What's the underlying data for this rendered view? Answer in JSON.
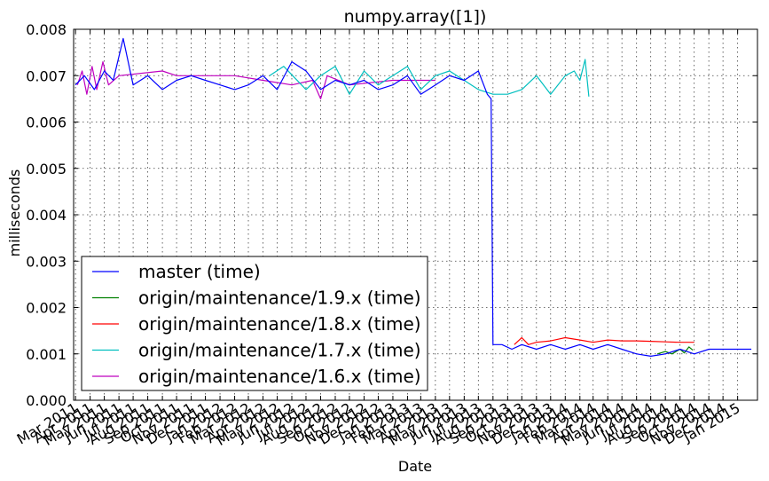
{
  "chart_data": {
    "type": "line",
    "title": "numpy.array([1])",
    "xlabel": "Date",
    "ylabel": "milliseconds",
    "ylim": [
      0,
      0.008
    ],
    "xlim": [
      "2011-02-25",
      "2015-02-12"
    ],
    "grid": true,
    "legend_position": "lower-left",
    "y_ticks": [
      "0.000",
      "0.001",
      "0.002",
      "0.003",
      "0.004",
      "0.005",
      "0.006",
      "0.007",
      "0.008"
    ],
    "x_ticks": [
      {
        "date": "2011-03-01",
        "label": "Mar 2011"
      },
      {
        "date": "2011-04-01",
        "label": "Apr 2011"
      },
      {
        "date": "2011-05-01",
        "label": "May 2011"
      },
      {
        "date": "2011-06-01",
        "label": "Jun 2011"
      },
      {
        "date": "2011-07-01",
        "label": "Jul 2011"
      },
      {
        "date": "2011-08-01",
        "label": "Aug 2011"
      },
      {
        "date": "2011-09-01",
        "label": "Sep 2011"
      },
      {
        "date": "2011-10-01",
        "label": "Oct 2011"
      },
      {
        "date": "2011-11-01",
        "label": "Nov 2011"
      },
      {
        "date": "2011-12-01",
        "label": "Dec 2011"
      },
      {
        "date": "2012-01-01",
        "label": "Jan 2012"
      },
      {
        "date": "2012-02-01",
        "label": "Feb 2012"
      },
      {
        "date": "2012-03-01",
        "label": "Mar 2012"
      },
      {
        "date": "2012-04-01",
        "label": "Apr 2012"
      },
      {
        "date": "2012-05-01",
        "label": "May 2012"
      },
      {
        "date": "2012-06-01",
        "label": "Jun 2012"
      },
      {
        "date": "2012-07-01",
        "label": "Jul 2012"
      },
      {
        "date": "2012-08-01",
        "label": "Aug 2012"
      },
      {
        "date": "2012-09-01",
        "label": "Sep 2012"
      },
      {
        "date": "2012-10-01",
        "label": "Oct 2012"
      },
      {
        "date": "2012-11-01",
        "label": "Nov 2012"
      },
      {
        "date": "2012-12-01",
        "label": "Dec 2012"
      },
      {
        "date": "2013-01-01",
        "label": "Jan 2013"
      },
      {
        "date": "2013-02-01",
        "label": "Feb 2013"
      },
      {
        "date": "2013-03-01",
        "label": "Mar 2013"
      },
      {
        "date": "2013-04-01",
        "label": "Apr 2013"
      },
      {
        "date": "2013-05-01",
        "label": "May 2013"
      },
      {
        "date": "2013-06-01",
        "label": "Jun 2013"
      },
      {
        "date": "2013-07-01",
        "label": "Jul 2013"
      },
      {
        "date": "2013-08-01",
        "label": "Aug 2013"
      },
      {
        "date": "2013-09-01",
        "label": "Sep 2013"
      },
      {
        "date": "2013-10-01",
        "label": "Oct 2013"
      },
      {
        "date": "2013-11-01",
        "label": "Nov 2013"
      },
      {
        "date": "2013-12-01",
        "label": "Dec 2013"
      },
      {
        "date": "2014-01-01",
        "label": "Jan 2014"
      },
      {
        "date": "2014-02-01",
        "label": "Feb 2014"
      },
      {
        "date": "2014-03-01",
        "label": "Mar 2014"
      },
      {
        "date": "2014-04-01",
        "label": "Apr 2014"
      },
      {
        "date": "2014-05-01",
        "label": "May 2014"
      },
      {
        "date": "2014-06-01",
        "label": "Jun 2014"
      },
      {
        "date": "2014-07-01",
        "label": "Jul 2014"
      },
      {
        "date": "2014-08-01",
        "label": "Aug 2014"
      },
      {
        "date": "2014-09-01",
        "label": "Sep 2014"
      },
      {
        "date": "2014-10-01",
        "label": "Oct 2014"
      },
      {
        "date": "2014-11-01",
        "label": "Nov 2014"
      },
      {
        "date": "2014-12-01",
        "label": "Dec 2014"
      },
      {
        "date": "2015-01-01",
        "label": "Jan 2015"
      }
    ],
    "series": [
      {
        "name": "master (time)",
        "color": "#0000ff",
        "points": [
          [
            "2011-03-01",
            0.0068
          ],
          [
            "2011-03-20",
            0.007
          ],
          [
            "2011-04-10",
            0.0067
          ],
          [
            "2011-05-01",
            0.0071
          ],
          [
            "2011-05-20",
            0.0069
          ],
          [
            "2011-06-10",
            0.0078
          ],
          [
            "2011-07-01",
            0.0068
          ],
          [
            "2011-08-01",
            0.007
          ],
          [
            "2011-09-01",
            0.0067
          ],
          [
            "2011-10-01",
            0.0069
          ],
          [
            "2011-11-01",
            0.007
          ],
          [
            "2011-12-01",
            0.0069
          ],
          [
            "2012-01-01",
            0.0068
          ],
          [
            "2012-02-01",
            0.0067
          ],
          [
            "2012-03-01",
            0.0068
          ],
          [
            "2012-04-01",
            0.007
          ],
          [
            "2012-05-01",
            0.0067
          ],
          [
            "2012-06-01",
            0.0073
          ],
          [
            "2012-07-01",
            0.0071
          ],
          [
            "2012-08-01",
            0.0067
          ],
          [
            "2012-09-01",
            0.0069
          ],
          [
            "2012-10-01",
            0.0068
          ],
          [
            "2012-11-01",
            0.0069
          ],
          [
            "2012-12-01",
            0.0067
          ],
          [
            "2013-01-01",
            0.0068
          ],
          [
            "2013-02-01",
            0.007
          ],
          [
            "2013-03-01",
            0.0066
          ],
          [
            "2013-04-01",
            0.0068
          ],
          [
            "2013-05-01",
            0.007
          ],
          [
            "2013-06-01",
            0.0069
          ],
          [
            "2013-07-01",
            0.0071
          ],
          [
            "2013-07-20",
            0.0066
          ],
          [
            "2013-07-28",
            0.0065
          ],
          [
            "2013-08-01",
            0.0012
          ],
          [
            "2013-08-20",
            0.0012
          ],
          [
            "2013-09-10",
            0.0011
          ],
          [
            "2013-10-01",
            0.0012
          ],
          [
            "2013-11-01",
            0.0011
          ],
          [
            "2013-12-01",
            0.0012
          ],
          [
            "2014-01-01",
            0.0011
          ],
          [
            "2014-02-01",
            0.0012
          ],
          [
            "2014-03-01",
            0.0011
          ],
          [
            "2014-04-01",
            0.0012
          ],
          [
            "2014-05-01",
            0.0011
          ],
          [
            "2014-06-01",
            0.001
          ],
          [
            "2014-07-01",
            0.00095
          ],
          [
            "2014-08-01",
            0.001
          ],
          [
            "2014-09-01",
            0.0011
          ],
          [
            "2014-10-01",
            0.001
          ],
          [
            "2014-11-01",
            0.0011
          ],
          [
            "2014-12-01",
            0.0011
          ],
          [
            "2015-01-01",
            0.0011
          ],
          [
            "2015-01-30",
            0.0011
          ]
        ]
      },
      {
        "name": "origin/maintenance/1.9.x (time)",
        "color": "#008000",
        "points": [
          [
            "2014-07-15",
            0.001
          ],
          [
            "2014-08-01",
            0.00105
          ],
          [
            "2014-08-15",
            0.001
          ],
          [
            "2014-09-01",
            0.0011
          ],
          [
            "2014-09-10",
            0.00102
          ],
          [
            "2014-09-20",
            0.00115
          ],
          [
            "2014-09-28",
            0.00108
          ]
        ]
      },
      {
        "name": "origin/maintenance/1.8.x (time)",
        "color": "#ff0000",
        "points": [
          [
            "2013-09-15",
            0.0012
          ],
          [
            "2013-10-01",
            0.00135
          ],
          [
            "2013-10-15",
            0.0012
          ],
          [
            "2013-11-01",
            0.00125
          ],
          [
            "2013-12-01",
            0.00128
          ],
          [
            "2014-01-01",
            0.00135
          ],
          [
            "2014-02-01",
            0.0013
          ],
          [
            "2014-03-01",
            0.00125
          ],
          [
            "2014-04-01",
            0.0013
          ],
          [
            "2014-05-01",
            0.00128
          ],
          [
            "2014-06-01",
            0.00128
          ],
          [
            "2014-07-01",
            0.00127
          ],
          [
            "2014-08-01",
            0.00126
          ],
          [
            "2014-09-01",
            0.00125
          ],
          [
            "2014-10-01",
            0.00125
          ]
        ]
      },
      {
        "name": "origin/maintenance/1.7.x (time)",
        "color": "#00bfbf",
        "points": [
          [
            "2012-04-15",
            0.007
          ],
          [
            "2012-05-15",
            0.0072
          ],
          [
            "2012-07-01",
            0.0067
          ],
          [
            "2012-08-01",
            0.007
          ],
          [
            "2012-09-01",
            0.0072
          ],
          [
            "2012-10-01",
            0.0066
          ],
          [
            "2012-11-01",
            0.0071
          ],
          [
            "2012-12-01",
            0.0068
          ],
          [
            "2013-01-01",
            0.007
          ],
          [
            "2013-02-01",
            0.0072
          ],
          [
            "2013-03-01",
            0.0067
          ],
          [
            "2013-04-01",
            0.007
          ],
          [
            "2013-05-01",
            0.0071
          ],
          [
            "2013-06-01",
            0.0069
          ],
          [
            "2013-07-01",
            0.0067
          ],
          [
            "2013-08-01",
            0.0066
          ],
          [
            "2013-09-01",
            0.0066
          ],
          [
            "2013-10-01",
            0.0067
          ],
          [
            "2013-11-01",
            0.007
          ],
          [
            "2013-12-01",
            0.0066
          ],
          [
            "2014-01-01",
            0.007
          ],
          [
            "2014-01-20",
            0.0071
          ],
          [
            "2014-02-01",
            0.0069
          ],
          [
            "2014-02-12",
            0.00735
          ],
          [
            "2014-02-20",
            0.00655
          ]
        ]
      },
      {
        "name": "origin/maintenance/1.6.x (time)",
        "color": "#bf00bf",
        "points": [
          [
            "2011-03-05",
            0.0068
          ],
          [
            "2011-03-15",
            0.0071
          ],
          [
            "2011-03-25",
            0.0066
          ],
          [
            "2011-04-05",
            0.0072
          ],
          [
            "2011-04-15",
            0.0067
          ],
          [
            "2011-04-28",
            0.0073
          ],
          [
            "2011-05-10",
            0.0068
          ],
          [
            "2011-06-01",
            0.007
          ],
          [
            "2011-09-01",
            0.0071
          ],
          [
            "2011-10-01",
            0.007
          ],
          [
            "2011-12-01",
            0.007
          ],
          [
            "2012-02-01",
            0.007
          ],
          [
            "2012-04-01",
            0.0069
          ],
          [
            "2012-06-01",
            0.0068
          ],
          [
            "2012-07-15",
            0.0069
          ],
          [
            "2012-08-01",
            0.0065
          ],
          [
            "2012-08-15",
            0.007
          ],
          [
            "2012-10-01",
            0.0068
          ],
          [
            "2013-01-01",
            0.0069
          ],
          [
            "2013-04-01",
            0.0069
          ]
        ]
      }
    ]
  }
}
